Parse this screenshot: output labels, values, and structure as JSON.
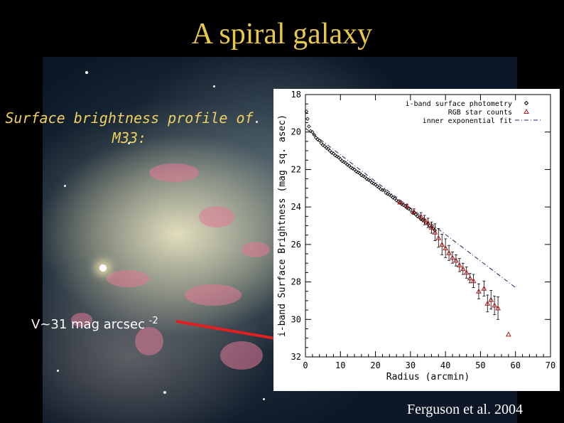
{
  "slide": {
    "title": "A spiral galaxy",
    "profile_label_line1": "Surface brightness profile of",
    "profile_label_line2": "M33:",
    "limit_label": "V~31 mag arcsec",
    "limit_exponent": "-2",
    "credit": "Ferguson et al. 2004"
  },
  "colors": {
    "title": "#e8c84a",
    "label": "#f0d060",
    "arrow": "#e02020",
    "rgb_marker": "#b01818"
  },
  "chart_data": {
    "type": "scatter",
    "xlabel": "Radius (arcmin)",
    "ylabel": "i-band Surface Brightness (mag sq. asec)",
    "xlim": [
      0,
      70
    ],
    "ylim": [
      32,
      18
    ],
    "x_ticks": [
      "0",
      "10",
      "20",
      "30",
      "40",
      "50",
      "60",
      "70"
    ],
    "y_ticks": [
      "18",
      "20",
      "22",
      "24",
      "26",
      "28",
      "30",
      "32"
    ],
    "legend_position": "top-right",
    "legend": [
      {
        "label": "i-band surface photometry",
        "symbol": "◇"
      },
      {
        "label": "RGB star counts",
        "symbol": "△"
      },
      {
        "label": "inner exponential fit",
        "symbol": "dashdot"
      }
    ],
    "series": [
      {
        "name": "i-band surface photometry",
        "marker": "diamond",
        "x": [
          0.3,
          0.6,
          1,
          1.5,
          2,
          2.5,
          3,
          3.5,
          4,
          4.5,
          5,
          5.5,
          6,
          6.5,
          7,
          7.5,
          8,
          8.5,
          9,
          9.5,
          10,
          10.5,
          11,
          11.5,
          12,
          12.5,
          13,
          13.5,
          14,
          14.5,
          15,
          15.5,
          16,
          16.5,
          17,
          17.5,
          18,
          18.5,
          19,
          19.5,
          20,
          20.5,
          21,
          21.5,
          22,
          22.5,
          23,
          23.5,
          24,
          24.5,
          25,
          25.5,
          26,
          26.5,
          27,
          27.5,
          28,
          28.5,
          29,
          29.5,
          30,
          30.5,
          31,
          31.5,
          32,
          32.5,
          33,
          33.5,
          34,
          34.5,
          35,
          35.5,
          36,
          36.5,
          37
        ],
        "y": [
          18.9,
          19.3,
          19.7,
          19.95,
          20.0,
          20.15,
          20.3,
          20.4,
          20.45,
          20.6,
          20.7,
          20.75,
          20.85,
          20.9,
          21.0,
          21.1,
          21.15,
          21.25,
          21.3,
          21.35,
          21.45,
          21.55,
          21.6,
          21.65,
          21.75,
          21.8,
          21.9,
          21.95,
          22.0,
          22.1,
          22.15,
          22.2,
          22.3,
          22.35,
          22.4,
          22.5,
          22.55,
          22.6,
          22.7,
          22.75,
          22.8,
          22.9,
          22.95,
          23.05,
          23.1,
          23.1,
          23.25,
          23.3,
          23.35,
          23.4,
          23.5,
          23.55,
          23.65,
          23.7,
          23.75,
          23.85,
          23.9,
          23.95,
          24.05,
          24.1,
          24.15,
          24.3,
          24.3,
          24.4,
          24.5,
          24.55,
          24.65,
          24.7,
          24.75,
          24.85,
          24.9,
          25.0,
          25.05,
          25.15,
          25.25
        ]
      },
      {
        "name": "RGB star counts",
        "marker": "triangle",
        "x": [
          27,
          29,
          31,
          33,
          34,
          35,
          36,
          37,
          38,
          39,
          40,
          41,
          42,
          43,
          44,
          45,
          46,
          47,
          48,
          49.5,
          51,
          52,
          53,
          54,
          55,
          58
        ],
        "y": [
          23.75,
          23.95,
          24.25,
          24.5,
          24.7,
          24.85,
          25.1,
          25.35,
          25.65,
          26.0,
          26.2,
          26.45,
          26.7,
          26.85,
          27.1,
          27.3,
          27.5,
          27.8,
          27.95,
          28.5,
          28.35,
          29.15,
          28.95,
          29.25,
          29.4,
          30.8
        ],
        "err": [
          0.1,
          0.1,
          0.15,
          0.2,
          0.25,
          0.25,
          0.3,
          0.45,
          0.5,
          0.55,
          0.5,
          0.4,
          0.3,
          0.3,
          0.35,
          0.3,
          0.3,
          0.25,
          0.35,
          0.4,
          0.4,
          0.45,
          0.5,
          0.5,
          0.6,
          0
        ]
      },
      {
        "name": "inner exponential fit",
        "line": "dashdot",
        "x": [
          0,
          60
        ],
        "y": [
          19.8,
          28.3
        ]
      }
    ]
  }
}
